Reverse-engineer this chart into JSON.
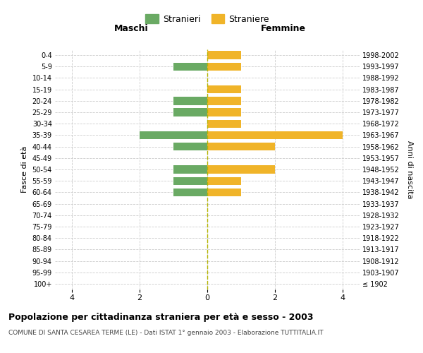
{
  "age_groups": [
    "100+",
    "95-99",
    "90-94",
    "85-89",
    "80-84",
    "75-79",
    "70-74",
    "65-69",
    "60-64",
    "55-59",
    "50-54",
    "45-49",
    "40-44",
    "35-39",
    "30-34",
    "25-29",
    "20-24",
    "15-19",
    "10-14",
    "5-9",
    "0-4"
  ],
  "birth_years": [
    "≤ 1902",
    "1903-1907",
    "1908-1912",
    "1913-1917",
    "1918-1922",
    "1923-1927",
    "1928-1932",
    "1933-1937",
    "1938-1942",
    "1943-1947",
    "1948-1952",
    "1953-1957",
    "1958-1962",
    "1963-1967",
    "1968-1972",
    "1973-1977",
    "1978-1982",
    "1983-1987",
    "1988-1992",
    "1993-1997",
    "1998-2002"
  ],
  "males": [
    0,
    0,
    0,
    0,
    0,
    0,
    0,
    0,
    1,
    1,
    1,
    0,
    1,
    2,
    0,
    1,
    1,
    0,
    0,
    1,
    0
  ],
  "females": [
    0,
    0,
    0,
    0,
    0,
    0,
    0,
    0,
    1,
    1,
    2,
    0,
    2,
    4,
    1,
    1,
    1,
    1,
    0,
    1,
    1
  ],
  "male_color": "#6aaa64",
  "female_color": "#f0b429",
  "center_line_color": "#b5b500",
  "title": "Popolazione per cittadinanza straniera per età e sesso - 2003",
  "subtitle": "COMUNE DI SANTA CESAREA TERME (LE) - Dati ISTAT 1° gennaio 2003 - Elaborazione TUTTITALIA.IT",
  "legend_male": "Stranieri",
  "legend_female": "Straniere",
  "xlabel_left": "Maschi",
  "xlabel_right": "Femmine",
  "ylabel_left": "Fasce di età",
  "ylabel_right": "Anni di nascita",
  "xlim": 4.5,
  "background_color": "#ffffff",
  "grid_color": "#cccccc"
}
